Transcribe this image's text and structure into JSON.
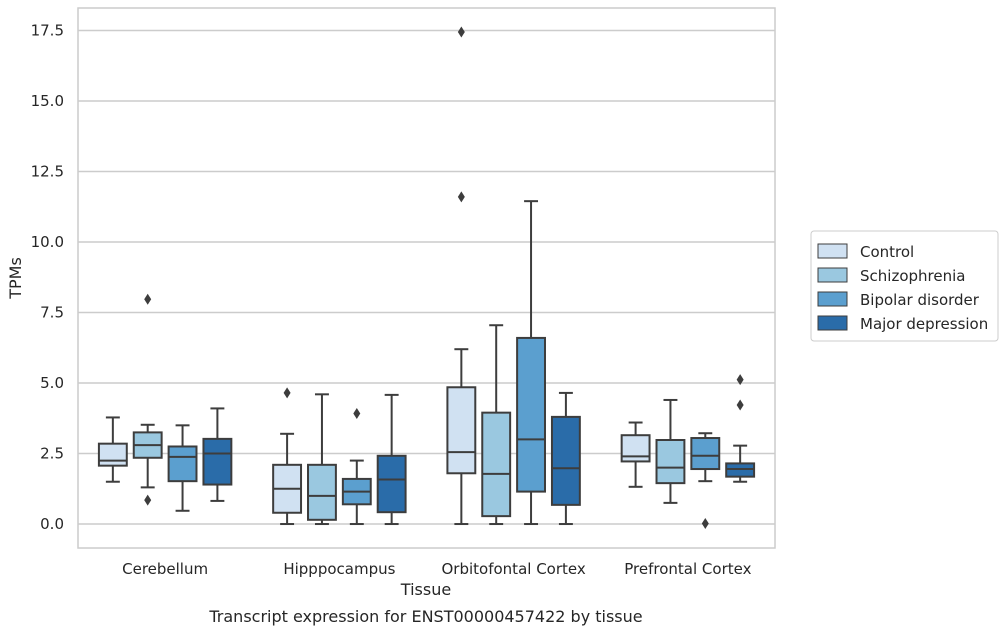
{
  "caption": "Transcript expression for ENST00000457422 by tissue",
  "chart_data": {
    "type": "box",
    "xlabel": "Tissue",
    "ylabel": "TPMs",
    "ylim": [
      -0.85,
      18.3
    ],
    "yticks": [
      "0.0",
      "2.5",
      "5.0",
      "7.5",
      "10.0",
      "12.5",
      "15.0",
      "17.5"
    ],
    "grid": "horizontal",
    "legend_position": "right",
    "categories": [
      "Cerebellum",
      "Hipppocampus",
      "Orbitofontal Cortex",
      "Prefrontal Cortex"
    ],
    "series": [
      {
        "name": "Control",
        "color": "#d0e1f2",
        "boxes": [
          {
            "whislo": 1.5,
            "q1": 2.07,
            "med": 2.25,
            "q3": 2.85,
            "whishi": 3.78,
            "fliers": []
          },
          {
            "whislo": 0.0,
            "q1": 0.4,
            "med": 1.25,
            "q3": 2.1,
            "whishi": 3.2,
            "fliers": [
              4.65
            ]
          },
          {
            "whislo": 0.0,
            "q1": 1.8,
            "med": 2.55,
            "q3": 4.85,
            "whishi": 6.2,
            "fliers": [
              11.6,
              17.45
            ]
          },
          {
            "whislo": 1.32,
            "q1": 2.22,
            "med": 2.4,
            "q3": 3.15,
            "whishi": 3.6,
            "fliers": []
          }
        ]
      },
      {
        "name": "Schizophrenia",
        "color": "#9ac8e0",
        "boxes": [
          {
            "whislo": 1.3,
            "q1": 2.35,
            "med": 2.8,
            "q3": 3.25,
            "whishi": 3.52,
            "fliers": [
              0.85,
              7.97
            ]
          },
          {
            "whislo": 0.0,
            "q1": 0.15,
            "med": 1.0,
            "q3": 2.1,
            "whishi": 4.6,
            "fliers": []
          },
          {
            "whislo": 0.0,
            "q1": 0.28,
            "med": 1.78,
            "q3": 3.95,
            "whishi": 7.05,
            "fliers": []
          },
          {
            "whislo": 0.75,
            "q1": 1.45,
            "med": 2.0,
            "q3": 2.98,
            "whishi": 4.4,
            "fliers": []
          }
        ]
      },
      {
        "name": "Bipolar disorder",
        "color": "#5b9fcf",
        "boxes": [
          {
            "whislo": 0.47,
            "q1": 1.52,
            "med": 2.38,
            "q3": 2.75,
            "whishi": 3.5,
            "fliers": []
          },
          {
            "whislo": 0.0,
            "q1": 0.7,
            "med": 1.15,
            "q3": 1.6,
            "whishi": 2.25,
            "fliers": [
              3.92
            ]
          },
          {
            "whislo": 0.0,
            "q1": 1.15,
            "med": 3.0,
            "q3": 6.6,
            "whishi": 11.45,
            "fliers": []
          },
          {
            "whislo": 1.52,
            "q1": 1.95,
            "med": 2.42,
            "q3": 3.05,
            "whishi": 3.22,
            "fliers": [
              0.02
            ]
          }
        ]
      },
      {
        "name": "Major depression",
        "color": "#2a6ca9",
        "boxes": [
          {
            "whislo": 0.82,
            "q1": 1.4,
            "med": 2.5,
            "q3": 3.02,
            "whishi": 4.1,
            "fliers": []
          },
          {
            "whislo": 0.0,
            "q1": 0.42,
            "med": 1.58,
            "q3": 2.42,
            "whishi": 4.58,
            "fliers": []
          },
          {
            "whislo": 0.0,
            "q1": 0.68,
            "med": 1.98,
            "q3": 3.8,
            "whishi": 4.65,
            "fliers": []
          },
          {
            "whislo": 1.5,
            "q1": 1.68,
            "med": 1.95,
            "q3": 2.15,
            "whishi": 2.78,
            "fliers": [
              4.22,
              5.12
            ]
          }
        ]
      }
    ]
  }
}
